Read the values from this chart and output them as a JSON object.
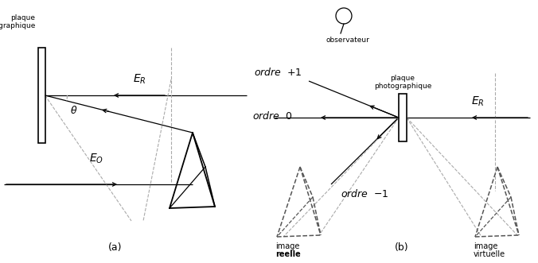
{
  "fig_width": 6.76,
  "fig_height": 3.31,
  "dpi": 100,
  "bg_color": "#ffffff",
  "black": "#000000",
  "gray": "#aaaaaa",
  "darkgray": "#555555",
  "panel_a": {
    "plaque_label": "plaque\nphotographique",
    "ER_label": "$E_R$",
    "EO_label": "$E_O$",
    "theta_label": "$\\theta$",
    "label": "(a)"
  },
  "panel_b": {
    "plaque_label": "plaque\nphotographique",
    "ER_label": "$E_R$",
    "ordre_p1_label": "$ordre$  $+1$",
    "ordre_0_label": "$ordre$  $0$",
    "ordre_m1_label": "$ordre$  $-1$",
    "image_reelle_1": "image",
    "image_reelle_2": "reelle",
    "image_virtuelle_1": "image",
    "image_virtuelle_2": "virtuelle",
    "observateur_label": "observateur",
    "label": "(b)"
  }
}
